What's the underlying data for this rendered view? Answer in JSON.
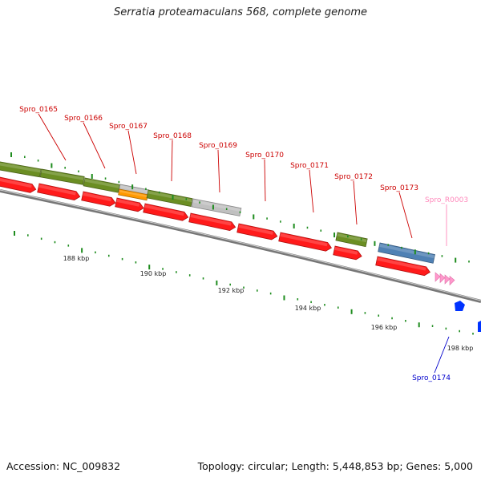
{
  "title": "Serratia proteamaculans 568, complete genome",
  "footer": {
    "accession": "Accession: NC_009832",
    "summary": "Topology: circular; Length: 5,448,853 bp; Genes: 5,000"
  },
  "colors": {
    "cds_forward": "#ff1a1a",
    "gene_green": "#6b8e23",
    "gene_grey": "#c0c0c0",
    "gene_orange": "#ff9900",
    "gene_blue": "#4f81b4",
    "rrna_pink": "#ff99cc",
    "reverse_blue": "#0033ff",
    "backbone": "#777777",
    "tick_green": "#1e8c1e",
    "label_red": "#cc0000",
    "label_pink": "#ff88bb",
    "label_blue": "#0000cc"
  },
  "scale_labels": [
    "188 kbp",
    "190 kbp",
    "192 kbp",
    "194 kbp",
    "196 kbp",
    "198 kbp"
  ],
  "gene_labels": [
    {
      "name": "Spro_0165",
      "color": "label_red"
    },
    {
      "name": "Spro_0166",
      "color": "label_red"
    },
    {
      "name": "Spro_0167",
      "color": "label_red"
    },
    {
      "name": "Spro_0168",
      "color": "label_red"
    },
    {
      "name": "Spro_0169",
      "color": "label_red"
    },
    {
      "name": "Spro_0170",
      "color": "label_red"
    },
    {
      "name": "Spro_0171",
      "color": "label_red"
    },
    {
      "name": "Spro_0172",
      "color": "label_red"
    },
    {
      "name": "Spro_0173",
      "color": "label_red"
    },
    {
      "name": "Spro_R0003",
      "color": "label_pink"
    },
    {
      "name": "Spro_0174",
      "color": "label_blue"
    }
  ]
}
